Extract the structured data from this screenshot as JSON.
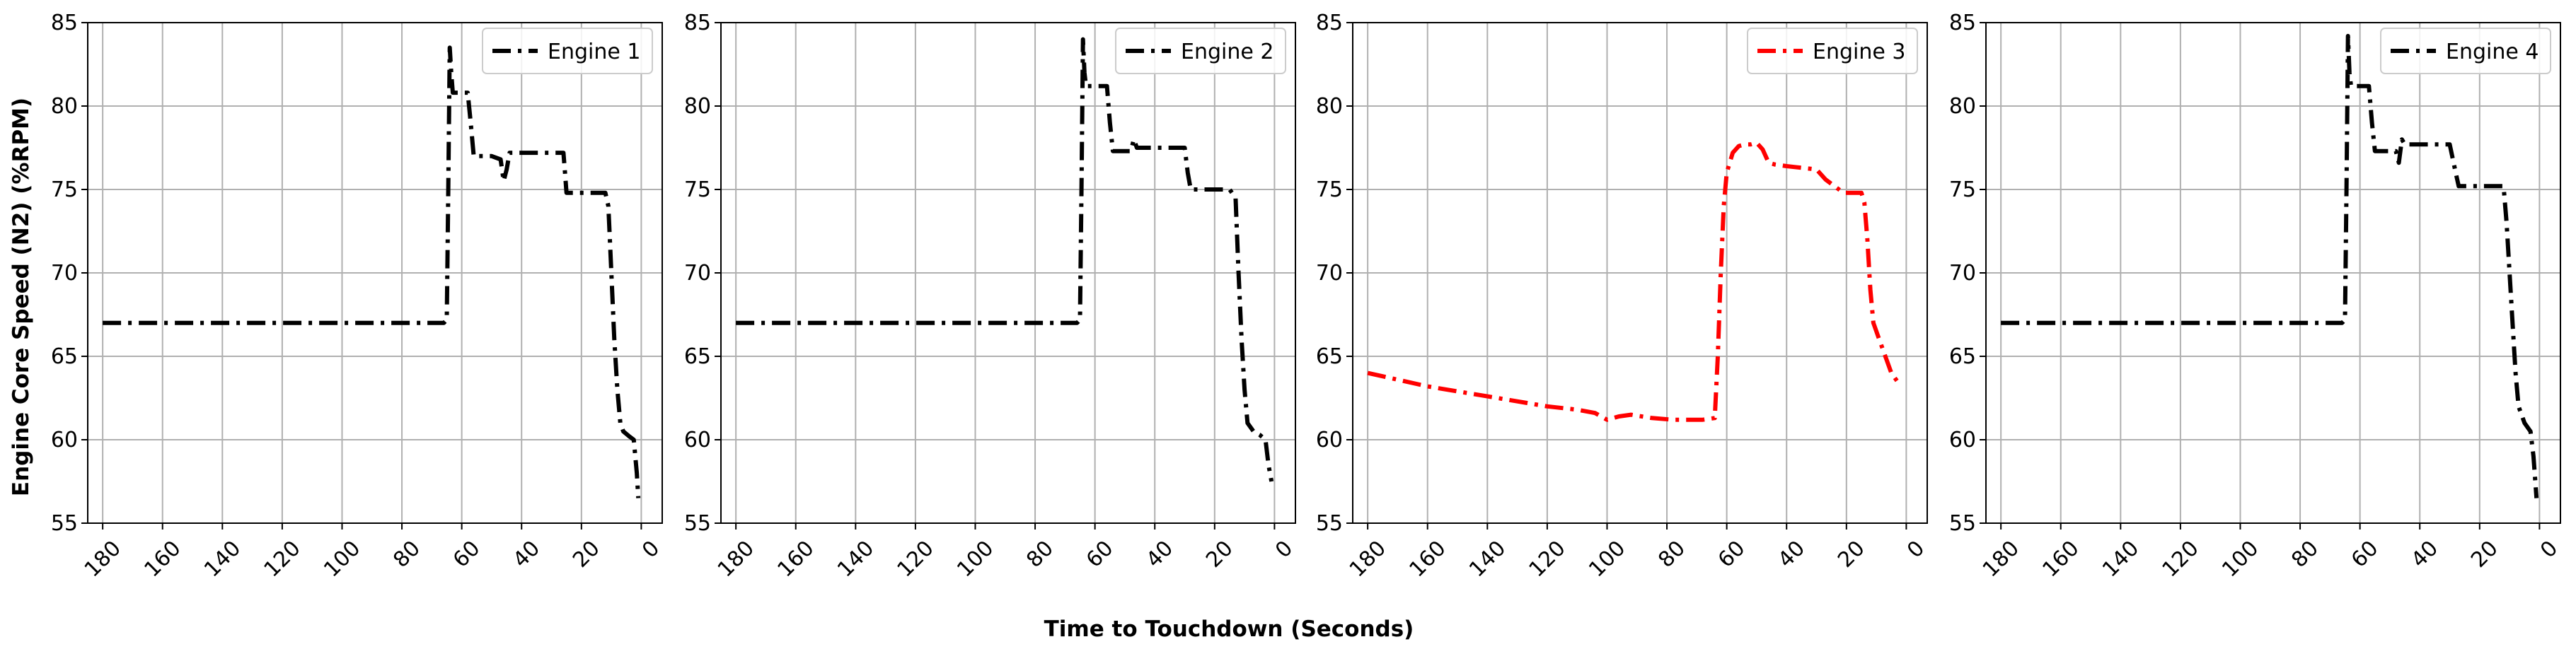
{
  "figure": {
    "ylabel": "Engine Core Speed (N2) (%RPM)",
    "xlabel": "Time to Touchdown (Seconds)"
  },
  "chart_data": [
    {
      "type": "line",
      "xlim": [
        185,
        -7
      ],
      "ylim": [
        55,
        85
      ],
      "x_ticks": [
        180,
        160,
        140,
        120,
        100,
        80,
        60,
        40,
        20,
        0
      ],
      "y_ticks": [
        55,
        60,
        65,
        70,
        75,
        80,
        85
      ],
      "grid": true,
      "legend_position": "top-right",
      "series": [
        {
          "name": "Engine 1",
          "color": "#000000",
          "line_style": "dash-dot",
          "points": [
            [
              180,
              67
            ],
            [
              170,
              67
            ],
            [
              150,
              67
            ],
            [
              130,
              67
            ],
            [
              110,
              67
            ],
            [
              90,
              67
            ],
            [
              75,
              67
            ],
            [
              66,
              67
            ],
            [
              65,
              67.2
            ],
            [
              64.5,
              75
            ],
            [
              64,
              83.5
            ],
            [
              63.5,
              82
            ],
            [
              63,
              80.8
            ],
            [
              60,
              80.8
            ],
            [
              58,
              80.8
            ],
            [
              57,
              79
            ],
            [
              56,
              77
            ],
            [
              53,
              77
            ],
            [
              50,
              77
            ],
            [
              47,
              76.8
            ],
            [
              46,
              75.5
            ],
            [
              45,
              76.2
            ],
            [
              44,
              77.2
            ],
            [
              38,
              77.2
            ],
            [
              30,
              77.2
            ],
            [
              26,
              77.2
            ],
            [
              25.5,
              76
            ],
            [
              25,
              74.8
            ],
            [
              20,
              74.8
            ],
            [
              14,
              74.8
            ],
            [
              12,
              74.8
            ],
            [
              11,
              74
            ],
            [
              10,
              70
            ],
            [
              9,
              66
            ],
            [
              8,
              63
            ],
            [
              7,
              61
            ],
            [
              6,
              60.5
            ],
            [
              4,
              60.2
            ],
            [
              2.5,
              60
            ],
            [
              1.5,
              58
            ],
            [
              1,
              56.5
            ]
          ]
        },
        {
          "name": "Engine 2",
          "color": "#000000",
          "line_style": "dash-dot",
          "points": [
            [
              180,
              67
            ],
            [
              170,
              67
            ],
            [
              150,
              67
            ],
            [
              130,
              67
            ],
            [
              110,
              67
            ],
            [
              90,
              67
            ],
            [
              75,
              67
            ],
            [
              66,
              67
            ],
            [
              65,
              67.2
            ],
            [
              64.5,
              75
            ],
            [
              64,
              84
            ],
            [
              63.5,
              82
            ],
            [
              63,
              81.2
            ],
            [
              60,
              81.2
            ],
            [
              56,
              81.2
            ],
            [
              55,
              79
            ],
            [
              54,
              77.3
            ],
            [
              50,
              77.3
            ],
            [
              48,
              77.3
            ],
            [
              47,
              78
            ],
            [
              46,
              77.5
            ],
            [
              40,
              77.5
            ],
            [
              32,
              77.5
            ],
            [
              30,
              77.5
            ],
            [
              29,
              76
            ],
            [
              28,
              75
            ],
            [
              20,
              75
            ],
            [
              15,
              75
            ],
            [
              13,
              74.5
            ],
            [
              12,
              70
            ],
            [
              11,
              66
            ],
            [
              10,
              63
            ],
            [
              9,
              61
            ],
            [
              7,
              60.5
            ],
            [
              5,
              60.3
            ],
            [
              3,
              60
            ],
            [
              2,
              58.5
            ],
            [
              1,
              57.5
            ]
          ]
        },
        {
          "name": "Engine 3",
          "color": "#ff0000",
          "line_style": "dash-dot",
          "points": [
            [
              180,
              64
            ],
            [
              170,
              63.6
            ],
            [
              160,
              63.2
            ],
            [
              150,
              62.9
            ],
            [
              140,
              62.6
            ],
            [
              130,
              62.3
            ],
            [
              120,
              62
            ],
            [
              110,
              61.8
            ],
            [
              104,
              61.6
            ],
            [
              100,
              61.2
            ],
            [
              96,
              61.4
            ],
            [
              92,
              61.5
            ],
            [
              85,
              61.3
            ],
            [
              78,
              61.2
            ],
            [
              72,
              61.2
            ],
            [
              68,
              61.2
            ],
            [
              64,
              61.3
            ],
            [
              63,
              65
            ],
            [
              62,
              70
            ],
            [
              61,
              74
            ],
            [
              60,
              76
            ],
            [
              58,
              77.2
            ],
            [
              56,
              77.6
            ],
            [
              54,
              77.7
            ],
            [
              52,
              77.7
            ],
            [
              50,
              77.8
            ],
            [
              48,
              77.4
            ],
            [
              46,
              76.6
            ],
            [
              44,
              76.5
            ],
            [
              40,
              76.4
            ],
            [
              35,
              76.3
            ],
            [
              30,
              76.2
            ],
            [
              27,
              75.6
            ],
            [
              24,
              75.2
            ],
            [
              21,
              74.8
            ],
            [
              18,
              74.8
            ],
            [
              15,
              74.8
            ],
            [
              14,
              74.2
            ],
            [
              13,
              72
            ],
            [
              12,
              69
            ],
            [
              11,
              67
            ],
            [
              9,
              66
            ],
            [
              7,
              65
            ],
            [
              5,
              64
            ],
            [
              3,
              63.5
            ],
            [
              2,
              63.2
            ]
          ]
        },
        {
          "name": "Engine 4",
          "color": "#000000",
          "line_style": "dash-dot",
          "points": [
            [
              180,
              67
            ],
            [
              170,
              67
            ],
            [
              150,
              67
            ],
            [
              130,
              67
            ],
            [
              110,
              67
            ],
            [
              90,
              67
            ],
            [
              75,
              67
            ],
            [
              66,
              67
            ],
            [
              65,
              67.2
            ],
            [
              64.5,
              75
            ],
            [
              64,
              84.2
            ],
            [
              63.5,
              82
            ],
            [
              63,
              81.2
            ],
            [
              60,
              81.2
            ],
            [
              57,
              81.2
            ],
            [
              56,
              79
            ],
            [
              55,
              77.3
            ],
            [
              50,
              77.3
            ],
            [
              48,
              77.3
            ],
            [
              47,
              76.6
            ],
            [
              46,
              78
            ],
            [
              45,
              77.7
            ],
            [
              40,
              77.7
            ],
            [
              34,
              77.7
            ],
            [
              30,
              77.7
            ],
            [
              28,
              76
            ],
            [
              27,
              75.2
            ],
            [
              20,
              75.2
            ],
            [
              15,
              75.2
            ],
            [
              12,
              75.2
            ],
            [
              11,
              73
            ],
            [
              10,
              70
            ],
            [
              9,
              67
            ],
            [
              8,
              64
            ],
            [
              7,
              62
            ],
            [
              5,
              61
            ],
            [
              3,
              60.5
            ],
            [
              2,
              59
            ],
            [
              1,
              56.5
            ]
          ]
        }
      ]
    }
  ]
}
